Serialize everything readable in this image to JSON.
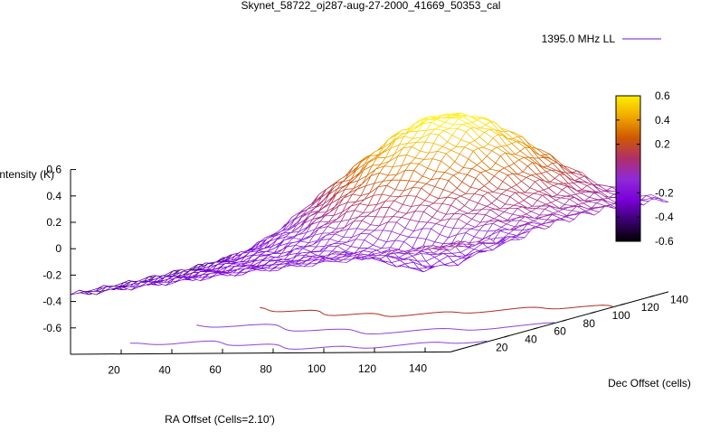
{
  "chart_data": {
    "type": "surface",
    "title": "Skynet_58722_oj287-aug-27-2000_41669_50353_cal",
    "xlabel": "RA Offset (Cells=2.10')",
    "ylabel": "Dec Offset (cells)",
    "zlabel": "Intensity (K)",
    "xlim": [
      0,
      150
    ],
    "ylim": [
      0,
      150
    ],
    "zlim": [
      -0.8,
      0.6
    ],
    "x_ticks": [
      "20",
      "40",
      "60",
      "80",
      "100",
      "120",
      "140"
    ],
    "y_ticks": [
      "20",
      "40",
      "60",
      "80",
      "100",
      "120",
      "140"
    ],
    "z_ticks": [
      "0.6",
      "0.4",
      "0.2",
      "0",
      "-0.2",
      "-0.4",
      "-0.6"
    ],
    "legend": {
      "label": "1395.0 MHz LL",
      "color": "#8e44d8",
      "position": "top-right"
    },
    "colorbar": {
      "ticks": [
        "0.6",
        "0.4",
        "0.2",
        "-0.2",
        "-0.4",
        "-0.6"
      ],
      "range": [
        -0.6,
        0.6
      ],
      "palette": [
        "#000000",
        "#3a0070",
        "#7a00d8",
        "#8f2ad8",
        "#b02f68",
        "#cf5a00",
        "#f0a800",
        "#ffee00"
      ]
    },
    "grid": false
  }
}
